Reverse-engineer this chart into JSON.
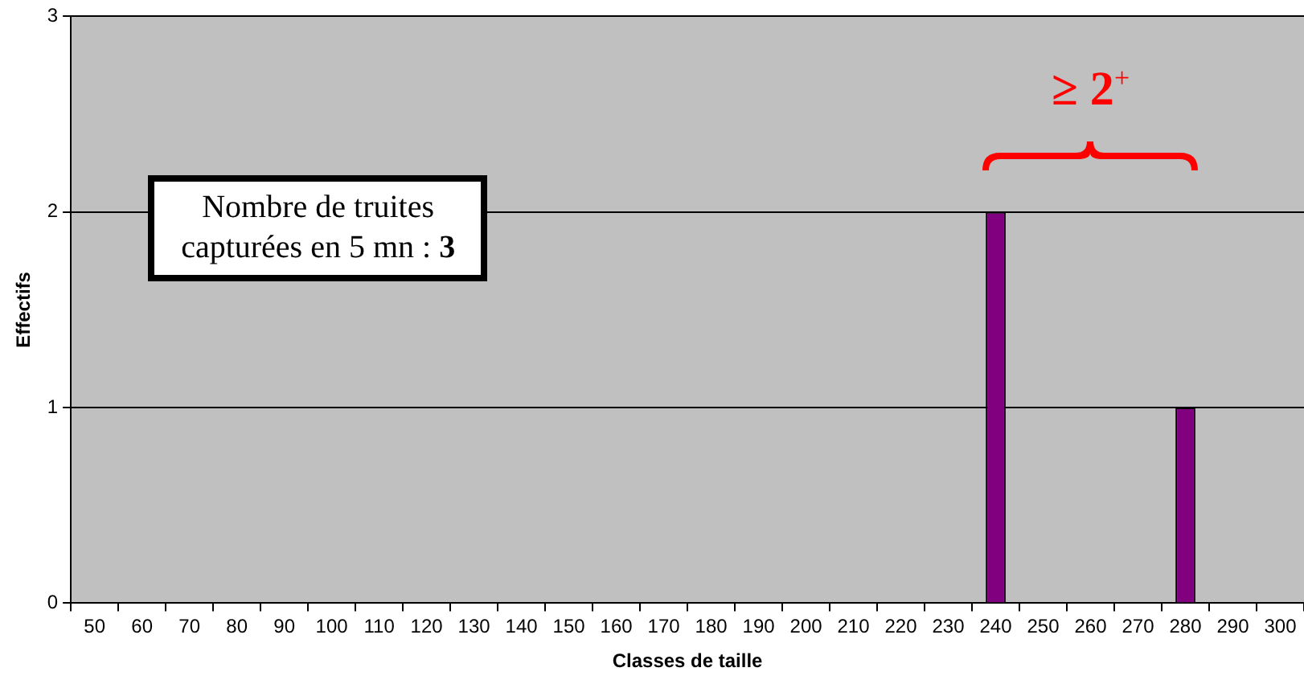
{
  "chart_data": {
    "type": "bar",
    "xlabel": "Classes de taille",
    "ylabel": "Effectifs",
    "categories": [
      "50",
      "60",
      "70",
      "80",
      "90",
      "100",
      "110",
      "120",
      "130",
      "140",
      "150",
      "160",
      "170",
      "180",
      "190",
      "200",
      "210",
      "220",
      "230",
      "240",
      "250",
      "260",
      "270",
      "280",
      "290",
      "300"
    ],
    "values": [
      0,
      0,
      0,
      0,
      0,
      0,
      0,
      0,
      0,
      0,
      0,
      0,
      0,
      0,
      0,
      0,
      0,
      0,
      0,
      2,
      0,
      0,
      0,
      1,
      0,
      0
    ],
    "color": "#800080",
    "ylim": [
      0,
      3
    ],
    "yticks": [
      0,
      1,
      2,
      3
    ],
    "grid": "y",
    "legend": false,
    "annotations": [
      "Nombre de truites capturées en 5 mn : 3",
      "≥ 2$^{+}$"
    ]
  }
}
